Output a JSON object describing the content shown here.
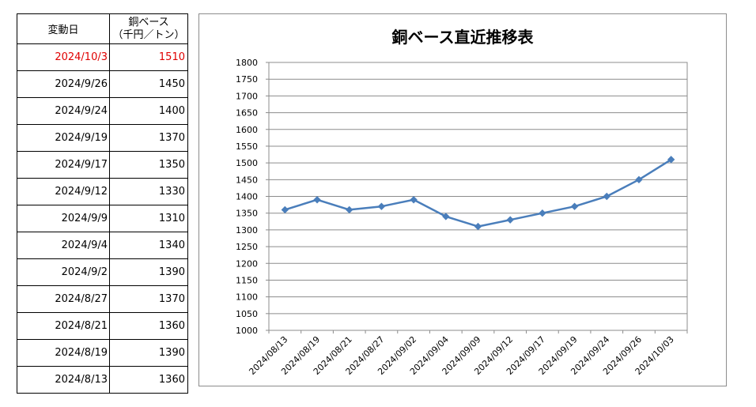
{
  "table": {
    "header_date": "変動日",
    "header_price_line1": "銅ベース",
    "header_price_line2": "（千円／トン）",
    "highlight_color": "#e00000",
    "rows": [
      {
        "date": "2024/10/3",
        "price": "1510"
      },
      {
        "date": "2024/9/26",
        "price": "1450"
      },
      {
        "date": "2024/9/24",
        "price": "1400"
      },
      {
        "date": "2024/9/19",
        "price": "1370"
      },
      {
        "date": "2024/9/17",
        "price": "1350"
      },
      {
        "date": "2024/9/12",
        "price": "1330"
      },
      {
        "date": "2024/9/9",
        "price": "1310"
      },
      {
        "date": "2024/9/4",
        "price": "1340"
      },
      {
        "date": "2024/9/2",
        "price": "1390"
      },
      {
        "date": "2024/8/27",
        "price": "1370"
      },
      {
        "date": "2024/8/21",
        "price": "1360"
      },
      {
        "date": "2024/8/19",
        "price": "1390"
      },
      {
        "date": "2024/8/13",
        "price": "1360"
      }
    ]
  },
  "chart_data": {
    "type": "line",
    "title": "銅ベース直近推移表",
    "xlabel": "",
    "ylabel": "",
    "x": [
      "2024/08/13",
      "2024/08/19",
      "2024/08/21",
      "2024/08/27",
      "2024/09/02",
      "2024/09/04",
      "2024/09/09",
      "2024/09/12",
      "2024/09/17",
      "2024/09/19",
      "2024/09/24",
      "2024/09/26",
      "2024/10/03"
    ],
    "series": [
      {
        "values": [
          1360,
          1390,
          1360,
          1370,
          1390,
          1340,
          1310,
          1330,
          1350,
          1370,
          1400,
          1450,
          1510
        ],
        "color": "#4a7ebb"
      }
    ],
    "ylim": [
      1000,
      1800
    ],
    "ytick_step": 50,
    "grid": true,
    "legend": "none",
    "marker": "diamond"
  }
}
